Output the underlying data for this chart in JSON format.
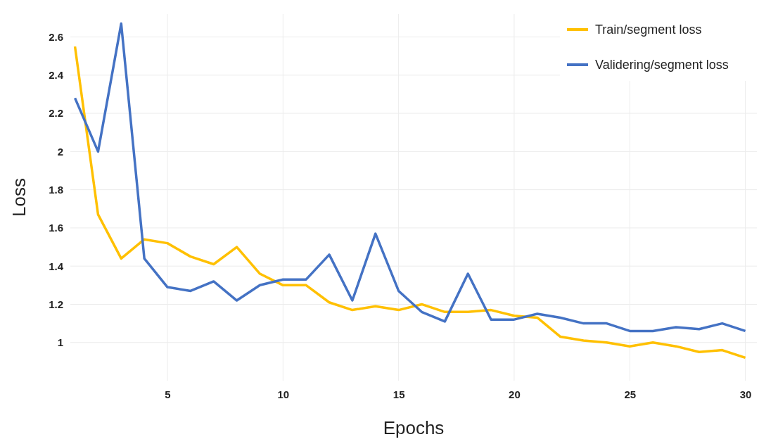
{
  "chart_data": {
    "type": "line",
    "xlabel": "Epochs",
    "ylabel": "Loss",
    "x": [
      1,
      2,
      3,
      4,
      5,
      6,
      7,
      8,
      9,
      10,
      11,
      12,
      13,
      14,
      15,
      16,
      17,
      18,
      19,
      20,
      21,
      22,
      23,
      24,
      25,
      26,
      27,
      28,
      29,
      30
    ],
    "series": [
      {
        "name": "Train/segment loss",
        "color": "#ffc000",
        "values": [
          2.55,
          1.67,
          1.44,
          1.54,
          1.52,
          1.45,
          1.41,
          1.5,
          1.36,
          1.3,
          1.3,
          1.21,
          1.17,
          1.19,
          1.17,
          1.2,
          1.16,
          1.16,
          1.17,
          1.14,
          1.13,
          1.03,
          1.01,
          1.0,
          0.98,
          1.0,
          0.98,
          0.95,
          0.96,
          0.92
        ]
      },
      {
        "name": "Validering/segment loss",
        "color": "#4472c4",
        "values": [
          2.28,
          2.0,
          2.67,
          1.44,
          1.29,
          1.27,
          1.32,
          1.22,
          1.3,
          1.33,
          1.33,
          1.46,
          1.22,
          1.57,
          1.27,
          1.16,
          1.11,
          1.36,
          1.12,
          1.12,
          1.15,
          1.13,
          1.1,
          1.1,
          1.06,
          1.06,
          1.08,
          1.07,
          1.1,
          1.06
        ]
      }
    ],
    "xlim": [
      0.8,
      30.5
    ],
    "ylim": [
      0.8,
      2.72
    ],
    "xticks": [
      5,
      10,
      15,
      20,
      25,
      30
    ],
    "yticks": [
      1,
      1.2,
      1.4,
      1.6,
      1.8,
      2,
      2.2,
      2.4,
      2.6
    ],
    "grid": true,
    "legend": "top right",
    "line_style": "solid",
    "marker": "none"
  }
}
